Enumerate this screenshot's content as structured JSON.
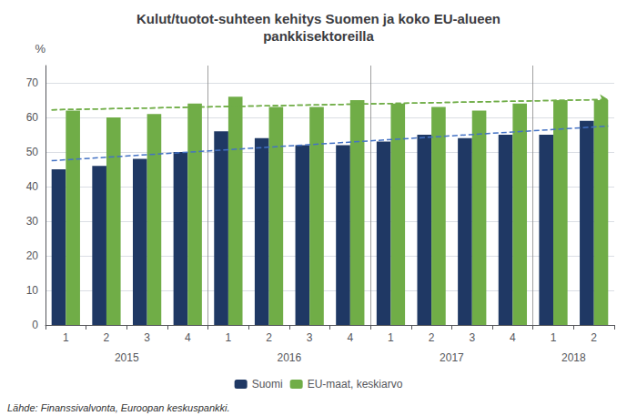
{
  "chart_data": {
    "type": "bar",
    "title": "Kulut/tuotot-suhteen kehitys Suomen ja koko EU-alueen\npankkisektoreilla",
    "y_label": "%",
    "source": "Lähde: Finanssivalvonta, Euroopan keskuspankki.",
    "categories": [
      "1",
      "2",
      "3",
      "4",
      "1",
      "2",
      "3",
      "4",
      "1",
      "2",
      "3",
      "4",
      "1",
      "2"
    ],
    "year_groups": [
      {
        "label": "2015",
        "span": 4
      },
      {
        "label": "2016",
        "span": 4
      },
      {
        "label": "2017",
        "span": 4
      },
      {
        "label": "2018",
        "span": 2
      }
    ],
    "year_separator_color": "#888888",
    "series": [
      {
        "name": "Suomi",
        "color": "#1F3864",
        "values": [
          45,
          46,
          48,
          50,
          56,
          54,
          52,
          52,
          53,
          55,
          54,
          55,
          55,
          59
        ]
      },
      {
        "name": "EU-maat, keskiarvo",
        "color": "#70AD47",
        "values": [
          62,
          60,
          61,
          64,
          66,
          63,
          63,
          65,
          64,
          63,
          62,
          64,
          65,
          65
        ]
      }
    ],
    "trends": [
      {
        "color": "#4472C4",
        "line_style": "dashed",
        "values": [
          47.5,
          57.5
        ]
      },
      {
        "color": "#70AD47",
        "line_style": "dashed",
        "marker": "arrow",
        "values": [
          62.2,
          65.2
        ]
      }
    ],
    "ylim": [
      0,
      75
    ],
    "yticks": [
      0,
      10,
      20,
      30,
      40,
      50,
      60,
      70
    ],
    "grid": true,
    "legend": "bottom"
  }
}
